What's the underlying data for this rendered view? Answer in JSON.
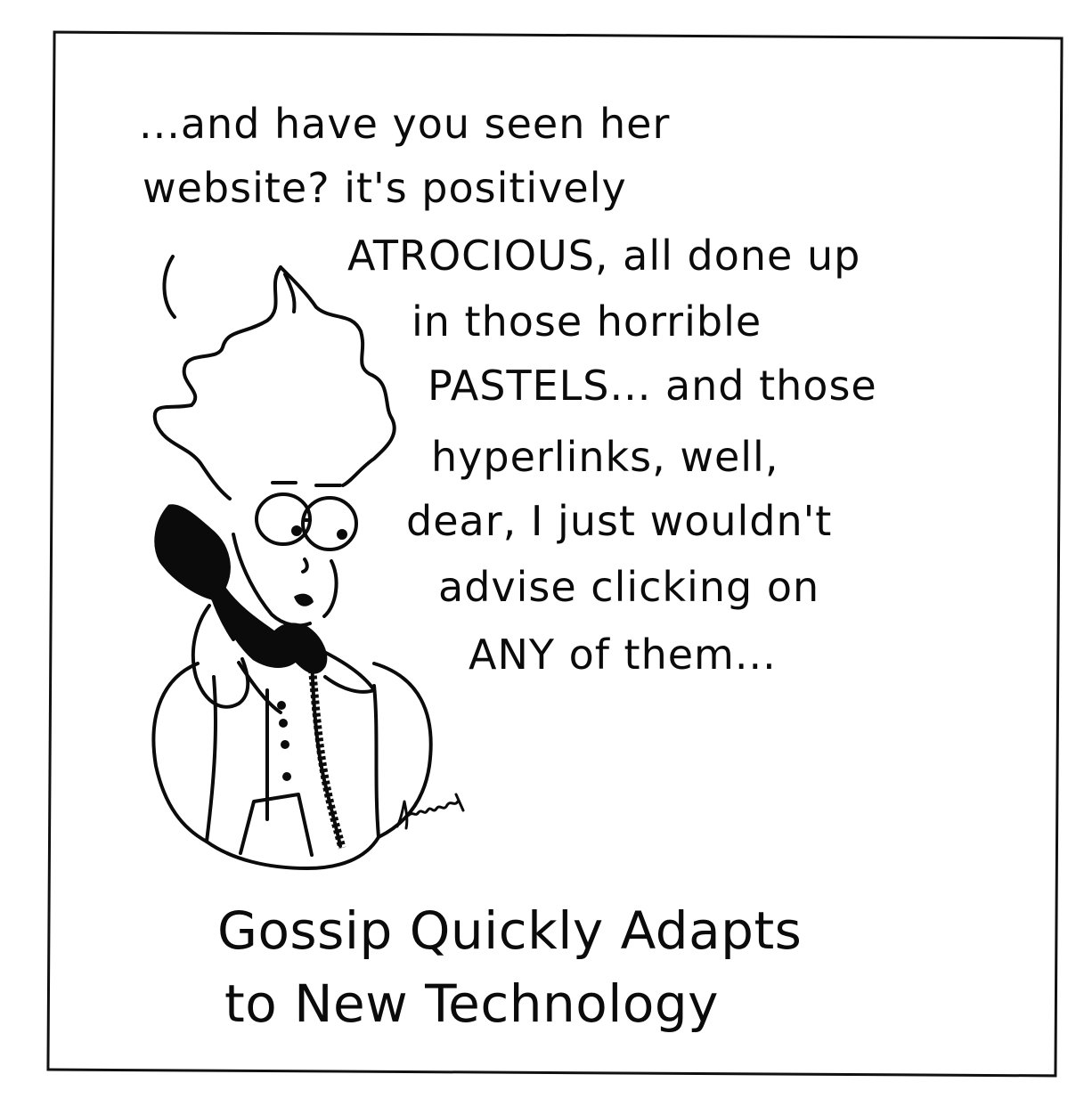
{
  "speech_lines": [
    "...and have you seen her",
    "website?  it's positively",
    "ATROCIOUS, all done up",
    "in those horrible",
    "PASTELS... and those",
    "hyperlinks, well,",
    "dear, I just wouldn't",
    "advise clicking on",
    "ANY of them..."
  ],
  "caption_lines": [
    "Gossip Quickly Adapts",
    "to New Technology"
  ],
  "illustration": {
    "subject": "woman-on-telephone",
    "ink_color": "#0b0b0b",
    "paper_color": "#ffffff"
  },
  "signature_text": "Knight"
}
